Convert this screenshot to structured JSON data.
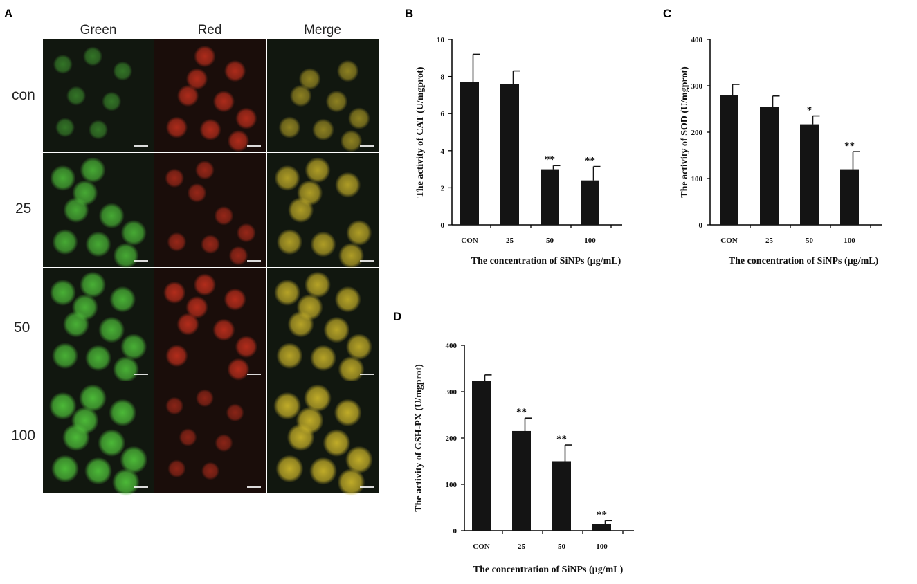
{
  "panels": {
    "a": "A",
    "b": "B",
    "c": "C",
    "d": "D"
  },
  "micrograph": {
    "columns": [
      "Green",
      "Red",
      "Merge"
    ],
    "rows": [
      "con",
      "25",
      "50",
      "100"
    ],
    "colors": {
      "green": "#4fc13a",
      "red": "#d2331f",
      "merge": "#c9b32a"
    },
    "brightness": {
      "green": [
        0.35,
        0.85,
        0.9,
        1.0
      ],
      "red": [
        0.75,
        0.55,
        0.8,
        0.45
      ],
      "merge": [
        0.55,
        0.85,
        0.9,
        1.0
      ]
    }
  },
  "chart_data": [
    {
      "type": "bar",
      "categories": [
        "CON",
        "25",
        "50",
        "100"
      ],
      "values": [
        7.7,
        7.6,
        3.0,
        2.4
      ],
      "errors": [
        1.5,
        0.7,
        0.2,
        0.75
      ],
      "significance": [
        "",
        "",
        "**",
        "**"
      ],
      "xlabel": "The concentration of SiNPs (µg/mL)",
      "ylabel": "The activity of CAT (U/mgprot)",
      "ylim": [
        0,
        10
      ],
      "yticks": [
        0,
        2,
        4,
        6,
        8,
        10
      ]
    },
    {
      "type": "bar",
      "categories": [
        "CON",
        "25",
        "50",
        "100"
      ],
      "values": [
        280,
        255,
        217,
        120
      ],
      "errors": [
        23,
        23,
        18,
        38
      ],
      "significance": [
        "",
        "",
        "*",
        "**"
      ],
      "xlabel": "The concentration of SiNPs (µg/mL)",
      "ylabel": "The activity of SOD (U/mgprot)",
      "ylim": [
        0,
        400
      ],
      "yticks": [
        0,
        100,
        200,
        300,
        400
      ]
    },
    {
      "type": "bar",
      "categories": [
        "CON",
        "25",
        "50",
        "100"
      ],
      "values": [
        323,
        215,
        150,
        14
      ],
      "errors": [
        13,
        28,
        35,
        8
      ],
      "significance": [
        "",
        "**",
        "**",
        "**"
      ],
      "xlabel": "The concentration of SiNPs (µg/mL)",
      "ylabel": "The activity of GSH-PX (U/mgprot)",
      "ylim": [
        0,
        400
      ],
      "yticks": [
        0,
        100,
        200,
        300,
        400
      ]
    }
  ]
}
